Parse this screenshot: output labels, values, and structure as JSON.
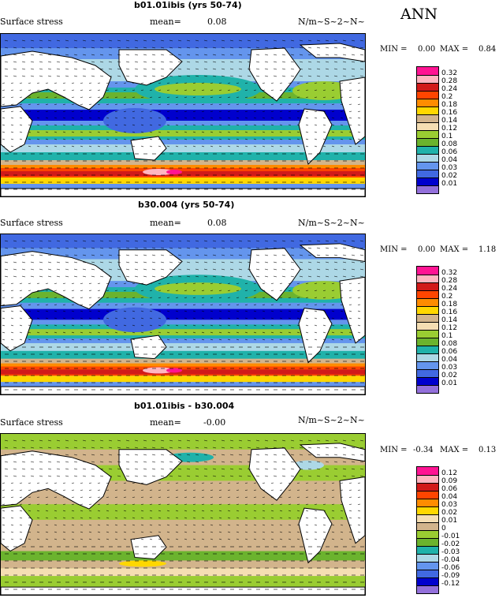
{
  "season": "ANN",
  "chart_data": [
    {
      "type": "heatmap",
      "title": "b01.01ibis (yrs 50-74)",
      "variable": "Surface stress",
      "mean_label": "mean=",
      "mean": "0.08",
      "units": "N/m~S~2~N~",
      "min_label": "MIN =",
      "min": "0.00",
      "max_label": "MAX =",
      "max": "0.84",
      "levels": [
        "0.32",
        "0.28",
        "0.24",
        "0.2",
        "0.18",
        "0.16",
        "0.14",
        "0.12",
        "0.1",
        "0.08",
        "0.06",
        "0.04",
        "0.03",
        "0.02",
        "0.01"
      ],
      "colors": [
        "#ff1493",
        "#ffb6c1",
        "#d11a1a",
        "#ff4500",
        "#ff8c00",
        "#ffd700",
        "#d2b48c",
        "#f5deb3",
        "#9acd32",
        "#6bb32e",
        "#20b2aa",
        "#add8e6",
        "#6495ed",
        "#4169e1",
        "#0000cd",
        "#9370db"
      ]
    },
    {
      "type": "heatmap",
      "title": "b30.004 (yrs 50-74)",
      "variable": "Surface stress",
      "mean_label": "mean=",
      "mean": "0.08",
      "units": "N/m~S~2~N~",
      "min_label": "MIN =",
      "min": "0.00",
      "max_label": "MAX =",
      "max": "1.18",
      "levels": [
        "0.32",
        "0.28",
        "0.24",
        "0.2",
        "0.18",
        "0.16",
        "0.14",
        "0.12",
        "0.1",
        "0.08",
        "0.06",
        "0.04",
        "0.03",
        "0.02",
        "0.01"
      ],
      "colors": [
        "#ff1493",
        "#ffb6c1",
        "#d11a1a",
        "#ff4500",
        "#ff8c00",
        "#ffd700",
        "#d2b48c",
        "#f5deb3",
        "#9acd32",
        "#6bb32e",
        "#20b2aa",
        "#add8e6",
        "#6495ed",
        "#4169e1",
        "#0000cd",
        "#9370db"
      ]
    },
    {
      "type": "heatmap",
      "title": "b01.01ibis - b30.004",
      "variable": "Surface stress",
      "mean_label": "mean=",
      "mean": "-0.00",
      "units": "N/m~S~2~N~",
      "min_label": "MIN =",
      "min": "-0.34",
      "max_label": "MAX =",
      "max": "0.13",
      "levels": [
        "0.12",
        "0.09",
        "0.06",
        "0.04",
        "0.03",
        "0.02",
        "0.01",
        "0",
        "-0.01",
        "-0.02",
        "-0.03",
        "-0.04",
        "-0.06",
        "-0.09",
        "-0.12"
      ],
      "colors": [
        "#ff1493",
        "#ffb6c1",
        "#d11a1a",
        "#ff4500",
        "#ff8c00",
        "#ffd700",
        "#f5deb3",
        "#d2b48c",
        "#9acd32",
        "#6bb32e",
        "#20b2aa",
        "#add8e6",
        "#6495ed",
        "#4169e1",
        "#0000cd",
        "#9370db"
      ]
    }
  ]
}
